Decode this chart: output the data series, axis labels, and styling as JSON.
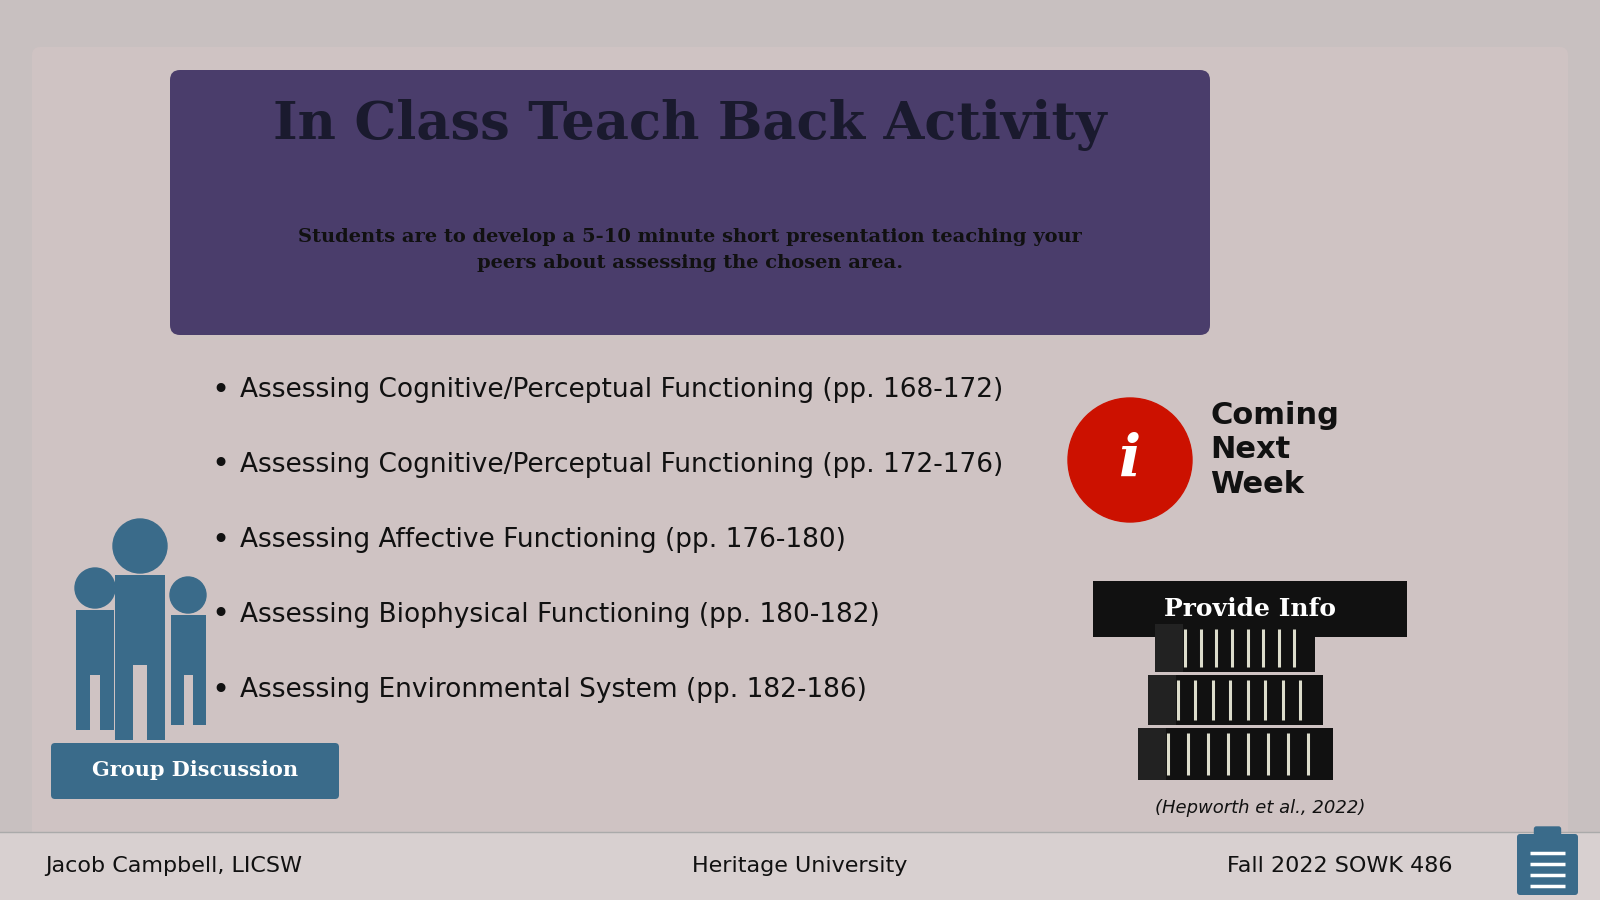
{
  "bg_outer": "#ddd5d5",
  "bg_inner": "#cfc3c3",
  "header_bg": "#4a3d6b",
  "header_title": "In Class Teach Back Activity",
  "header_subtitle": "Students are to develop a 5-10 minute short presentation teaching your\npeers about assessing the chosen area.",
  "bullet_items": [
    "Assessing Cognitive/Perceptual Functioning (pp. 168-172)",
    "Assessing Cognitive/Perceptual Functioning (pp. 172-176)",
    "Assessing Affective Functioning (pp. 176-180)",
    "Assessing Biophysical Functioning (pp. 180-182)",
    "Assessing Environmental System (pp. 182-186)"
  ],
  "coming_next_week": "Coming\nNext\nWeek",
  "provide_info": "Provide Info",
  "group_discussion": "Group Discussion",
  "citation": "(Hepworth et al., 2022)",
  "footer_left": "Jacob Campbell, LICSW",
  "footer_center": "Heritage University",
  "footer_right": "Fall 2022 SOWK 486",
  "people_color": "#3a6b8a",
  "group_disc_bg": "#3a6b8a",
  "red_circle": "#cc1100",
  "provide_info_bg": "#111111",
  "title_color": "#1a1a2e",
  "subtitle_color": "#111111",
  "bullet_color": "#111111",
  "footer_color": "#111111",
  "footer_bg": "#d8d0d0",
  "outer_bg": "#c8c0c0"
}
